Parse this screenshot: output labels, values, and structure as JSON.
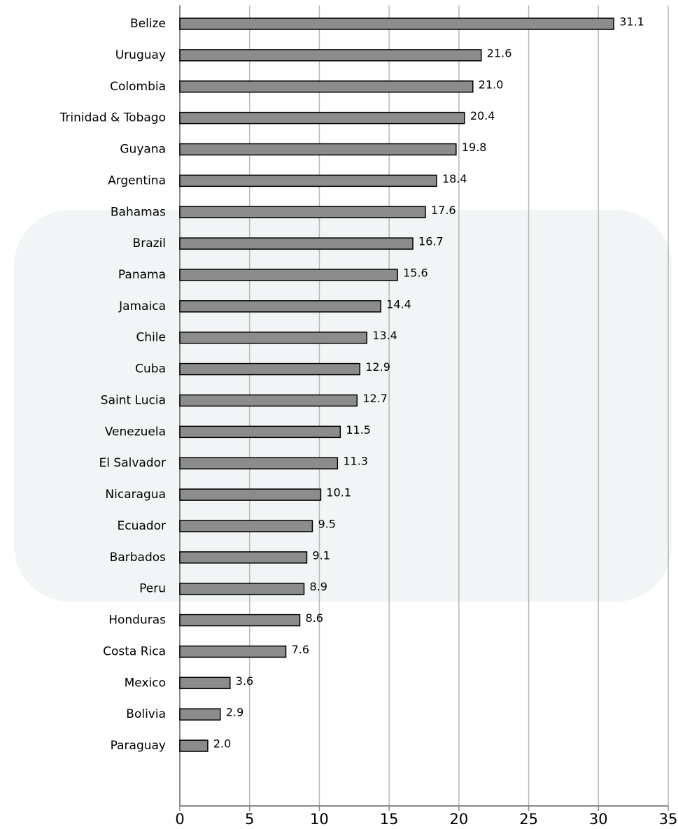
{
  "chart_data": {
    "type": "barh",
    "categories": [
      "Belize",
      "Uruguay",
      "Colombia",
      "Trinidad & Tobago",
      "Guyana",
      "Argentina",
      "Bahamas",
      "Brazil",
      "Panama",
      "Jamaica",
      "Chile",
      "Cuba",
      "Saint Lucia",
      "Venezuela",
      "El Salvador",
      "Nicaragua",
      "Ecuador",
      "Barbados",
      "Peru",
      "Honduras",
      "Costa Rica",
      "Mexico",
      "Bolivia",
      "Paraguay"
    ],
    "values": [
      31.1,
      21.6,
      21.0,
      20.4,
      19.8,
      18.4,
      17.6,
      16.7,
      15.6,
      14.4,
      13.4,
      12.9,
      12.7,
      11.5,
      11.3,
      10.1,
      9.5,
      9.1,
      8.9,
      8.6,
      7.6,
      3.6,
      2.9,
      2.0
    ],
    "value_labels": [
      "31.1",
      "21.6",
      "21.0",
      "20.4",
      "19.8",
      "18.4",
      "17.6",
      "16.7",
      "15.6",
      "14.4",
      "13.4",
      "12.9",
      "12.7",
      "11.5",
      "11.3",
      "10.1",
      "9.5",
      "9.1",
      "8.9",
      "8.6",
      "7.6",
      "3.6",
      "2.9",
      "2.0"
    ],
    "color": "#8c8c8c",
    "xlim": [
      0,
      35
    ],
    "xticks": [
      0,
      5,
      10,
      15,
      20,
      25,
      30,
      35
    ],
    "grid": true
  }
}
